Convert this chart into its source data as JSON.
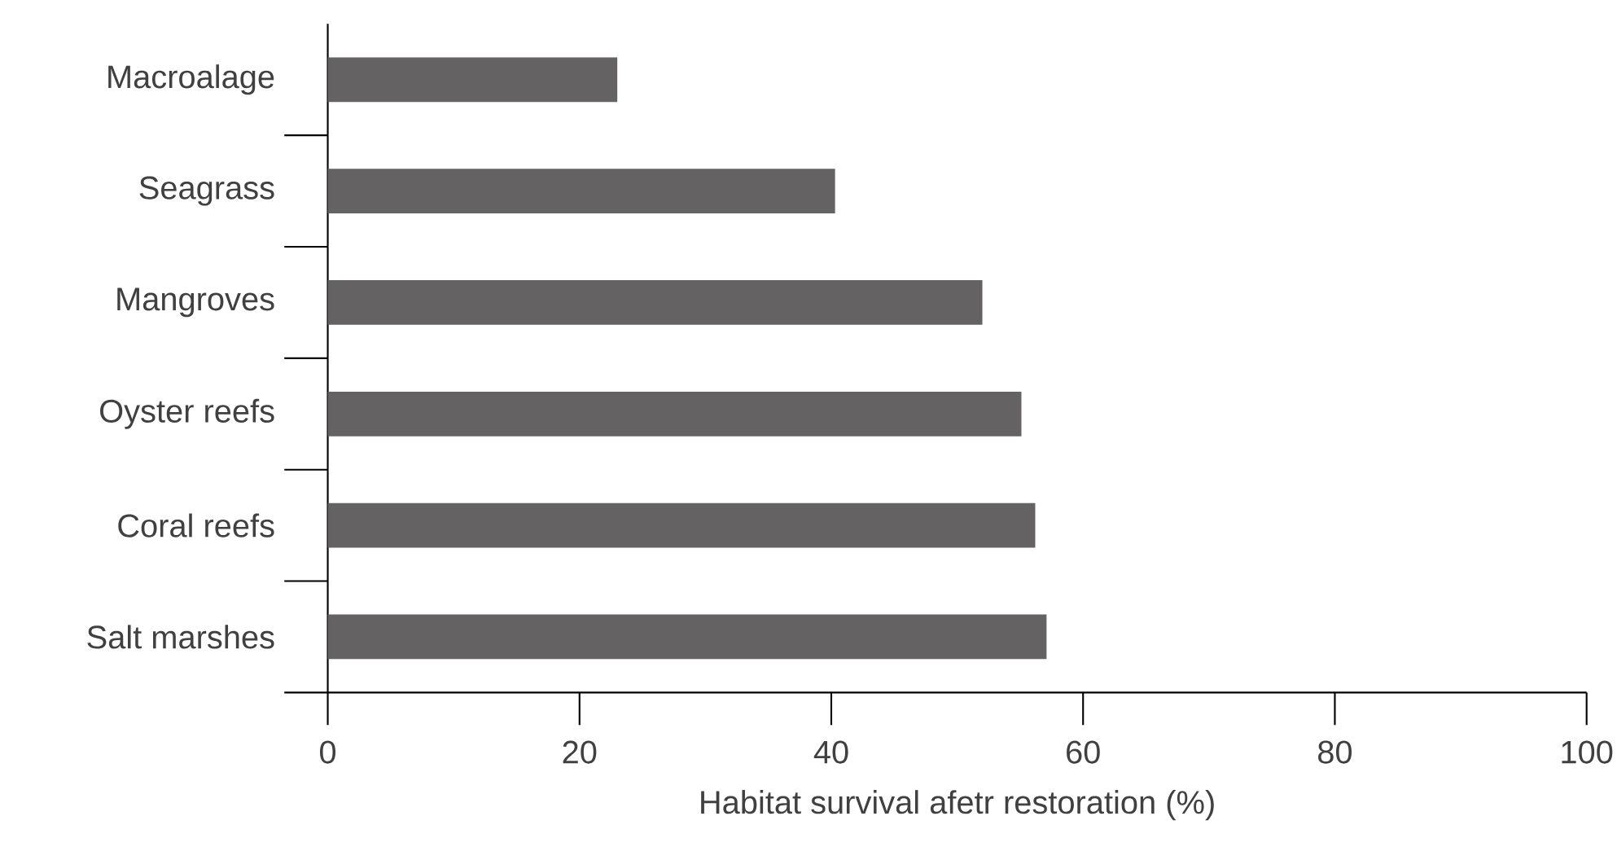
{
  "chart_data": {
    "type": "bar",
    "orientation": "horizontal",
    "xlabel": "Habitat survival afetr restoration (%)",
    "categories": [
      "Macroalage",
      "Seagrass",
      "Mangroves",
      "Oyster reefs",
      "Coral reefs",
      "Salt marshes"
    ],
    "values": [
      23,
      40.3,
      52,
      55.1,
      56.2,
      57.1
    ],
    "color": "#646262",
    "xlim": [
      0,
      100
    ],
    "xticks": [
      0,
      20,
      40,
      60,
      80,
      100
    ],
    "grid": false
  }
}
